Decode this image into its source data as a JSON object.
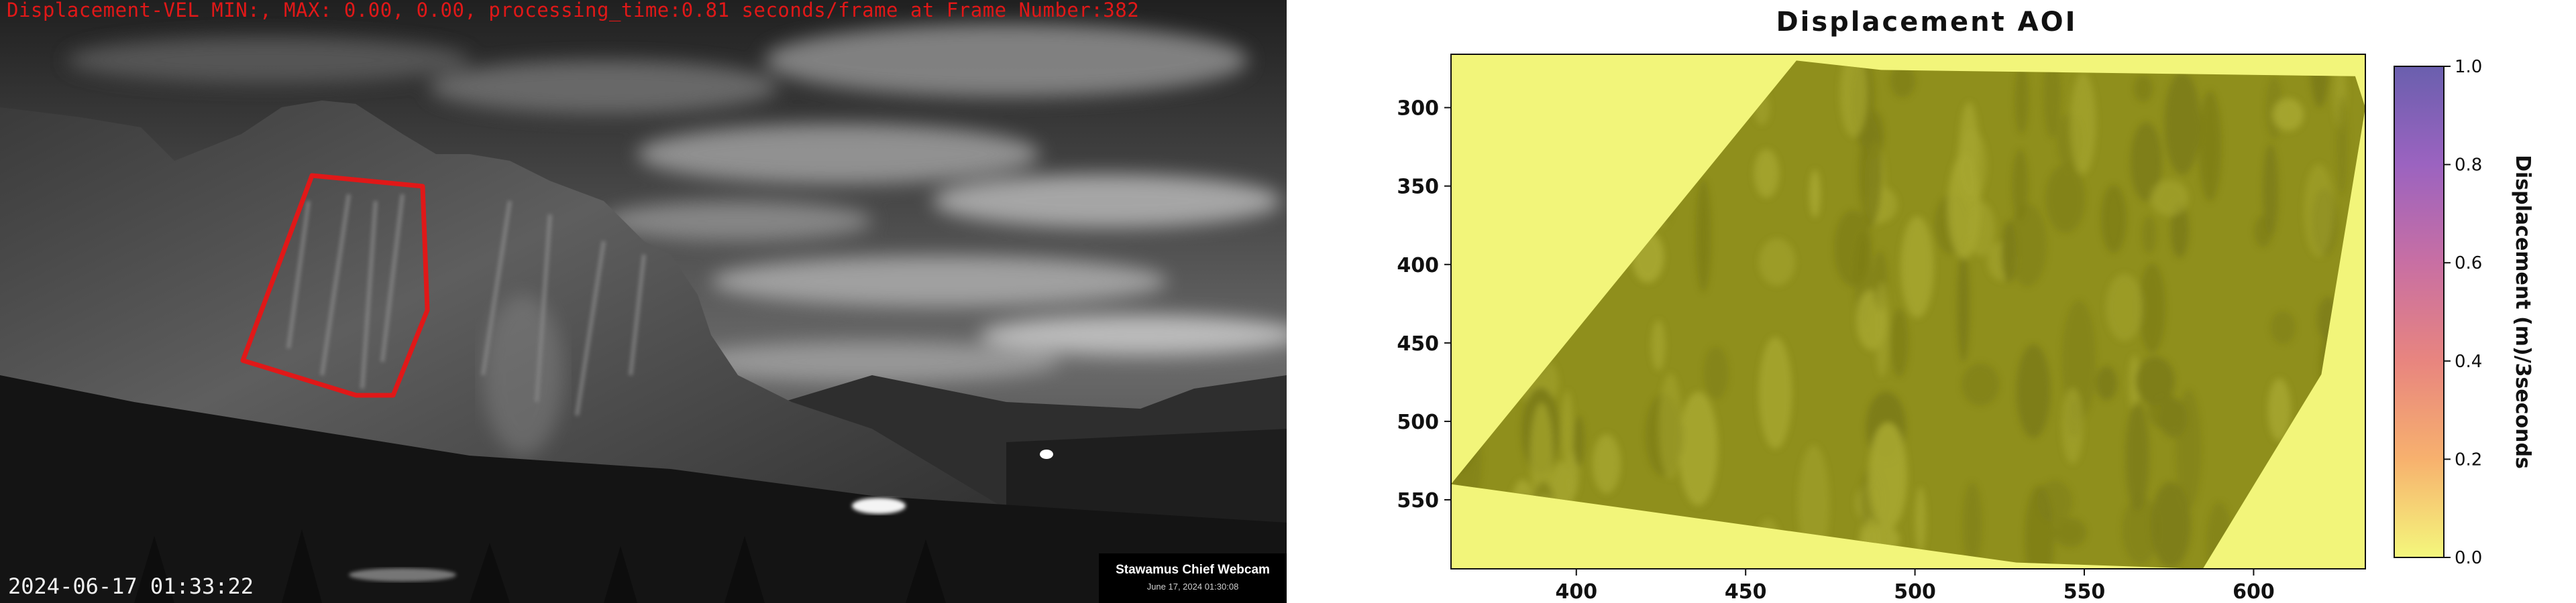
{
  "webcam": {
    "overlay_status": "Displacement-VEL MIN:, MAX: 0.00, 0.00, processing_time:0.81 seconds/frame at Frame Number:382",
    "timestamp": "2024-06-17 01:33:22",
    "credit_title": "Stawamus Chief Webcam",
    "credit_date": "June 17, 2024 01:30:08",
    "roi_color": "#e01818"
  },
  "chart_data": {
    "type": "heatmap",
    "title": "Displacement AOI",
    "xlabel": "",
    "ylabel": "",
    "xlim": [
      363,
      633
    ],
    "ylim": [
      594,
      266
    ],
    "x_ticks": [
      "400",
      "450",
      "500",
      "550",
      "600"
    ],
    "y_ticks": [
      "300",
      "350",
      "400",
      "450",
      "500",
      "550"
    ],
    "colorbar": {
      "label": "Displacement (m)/3seconds",
      "range": [
        0.0,
        1.0
      ],
      "ticks": [
        "0.0",
        "0.2",
        "0.4",
        "0.6",
        "0.8",
        "1.0"
      ],
      "colors": [
        "#f4f77c",
        "#f7b16e",
        "#e8857f",
        "#c86fa3",
        "#9b63c0",
        "#6a5fae"
      ]
    },
    "region_value": 0.0,
    "region_color": "#8f8f1c",
    "background_color": "#f2f57a"
  }
}
